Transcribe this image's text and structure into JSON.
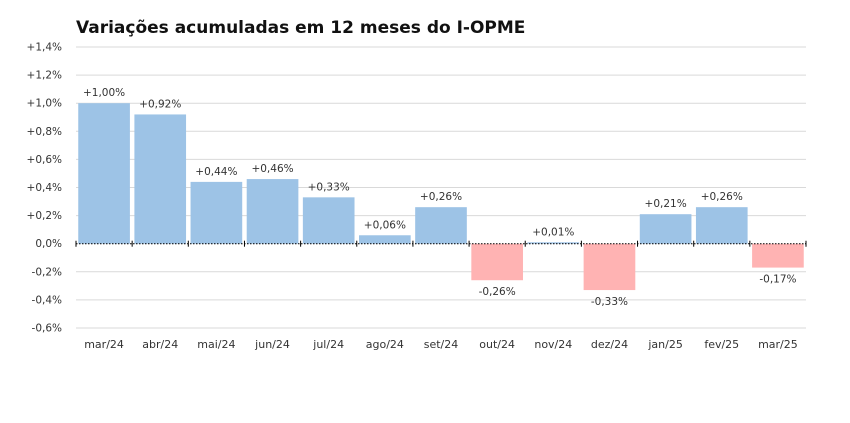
{
  "chart_data": {
    "type": "bar",
    "title": "Variações acumuladas em 12 meses do I-OPME",
    "xlabel": "",
    "ylabel": "",
    "categories": [
      "mar/24",
      "abr/24",
      "mai/24",
      "jun/24",
      "jul/24",
      "ago/24",
      "set/24",
      "out/24",
      "nov/24",
      "dez/24",
      "jan/25",
      "fev/25",
      "mar/25"
    ],
    "values": [
      1.0,
      0.92,
      0.44,
      0.46,
      0.33,
      0.06,
      0.26,
      -0.26,
      0.01,
      -0.33,
      0.21,
      0.26,
      -0.17
    ],
    "value_labels": [
      "+1,00%",
      "+0,92%",
      "+0,44%",
      "+0,46%",
      "+0,33%",
      "+0,06%",
      "+0,26%",
      "-0,26%",
      "+0,01%",
      "-0,33%",
      "+0,21%",
      "+0,26%",
      "-0,17%"
    ],
    "ylim": [
      -0.6,
      1.4
    ],
    "yticks": [
      1.4,
      1.2,
      1.0,
      0.8,
      0.6,
      0.4,
      0.2,
      0.0,
      -0.2,
      -0.4,
      -0.6
    ],
    "ytick_labels": [
      "+1,4%",
      "+1,2%",
      "+1,0%",
      "+0,8%",
      "+0,6%",
      "+0,4%",
      "+0,2%",
      "0,0%",
      "-0,2%",
      "-0,4%",
      "-0,6%"
    ],
    "grid": true,
    "legend": "none",
    "colors": {
      "positive": "#9dc3e6",
      "negative": "#ffb3b3",
      "grid": "#d9d9d9",
      "zero_line": "#000000"
    }
  }
}
